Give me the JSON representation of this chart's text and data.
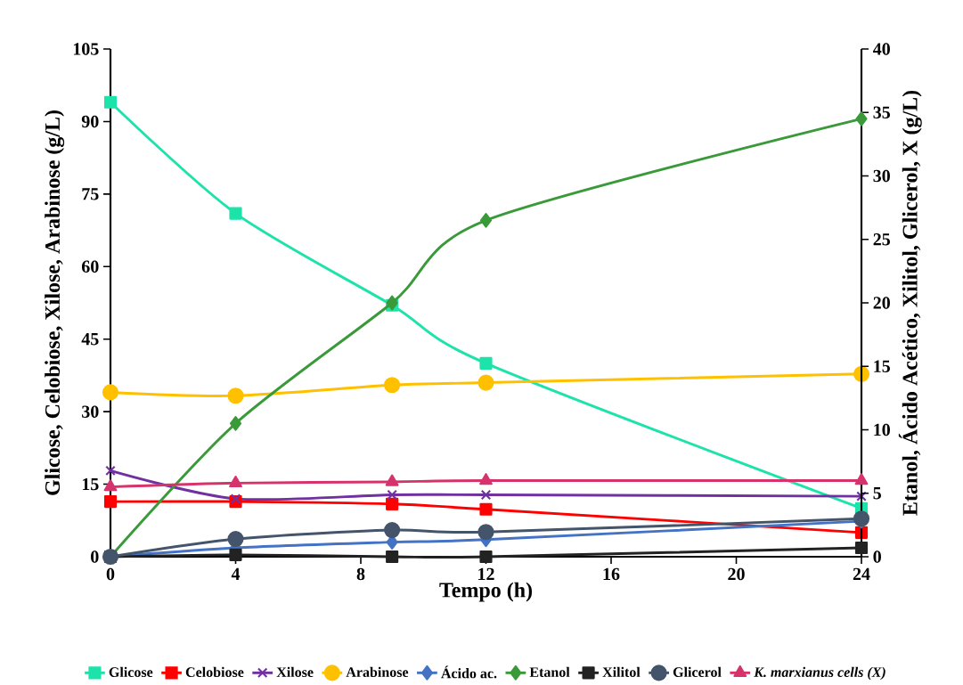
{
  "chart_data": {
    "type": "line",
    "xlabel": "Tempo (h)",
    "ylabel": "Glicose, Celobiose, Xilose, Arabinose (g/L)",
    "y2label": "Etanol, Ácido Acético, Xilitol, Glicerol, X (g/L)",
    "x": [
      0,
      4,
      9,
      12,
      24
    ],
    "xlim": [
      0,
      24
    ],
    "xticks": [
      0,
      4,
      8,
      12,
      16,
      20,
      24
    ],
    "ylim": [
      0,
      105
    ],
    "yticks": [
      0,
      15,
      30,
      45,
      60,
      75,
      90,
      105
    ],
    "y2lim": [
      0,
      40
    ],
    "y2ticks": [
      0,
      5,
      10,
      15,
      20,
      25,
      30,
      35,
      40
    ],
    "grid": false,
    "legend": "bottom",
    "line_style": "solid",
    "series": [
      {
        "name": "Glicose",
        "color": "#1de3aa",
        "marker": "square",
        "values": [
          94,
          71,
          52,
          40,
          10
        ]
      },
      {
        "name": "Celobiose",
        "color": "#ff0000",
        "marker": "square",
        "values": [
          11.4,
          11.4,
          10.9,
          9.8,
          5
        ]
      },
      {
        "name": "Xilose",
        "color": "#7030a0",
        "marker": "cross",
        "values": [
          17.8,
          12,
          12.8,
          12.8,
          12.5
        ]
      },
      {
        "name": "Arabinose",
        "color": "#ffc000",
        "marker": "circle",
        "values": [
          34,
          33.3,
          35.5,
          36,
          37.8
        ]
      },
      {
        "name": "Ácido ac.",
        "color": "#4472c4",
        "marker": "diamond",
        "axis": "y2",
        "values": [
          0,
          0.7,
          1.15,
          1.35,
          2.8
        ]
      },
      {
        "name": "Etanol",
        "color": "#3a9a3a",
        "marker": "diamond",
        "axis": "y2",
        "values": [
          0,
          10.5,
          20,
          26.5,
          34.5
        ]
      },
      {
        "name": "Xilitol",
        "color": "#222222",
        "marker": "square",
        "axis": "y2",
        "values": [
          0,
          0.15,
          0,
          0,
          0.7
        ]
      },
      {
        "name": "Glicerol",
        "color": "#44546a",
        "marker": "circle",
        "axis": "y2",
        "values": [
          0,
          1.4,
          2.1,
          1.95,
          3
        ]
      },
      {
        "name": "*K. marxianus cells (X)*",
        "color": "#d6336c",
        "marker": "triangle",
        "axis": "y2",
        "values": [
          5.5,
          5.8,
          5.9,
          6,
          6
        ]
      }
    ]
  }
}
